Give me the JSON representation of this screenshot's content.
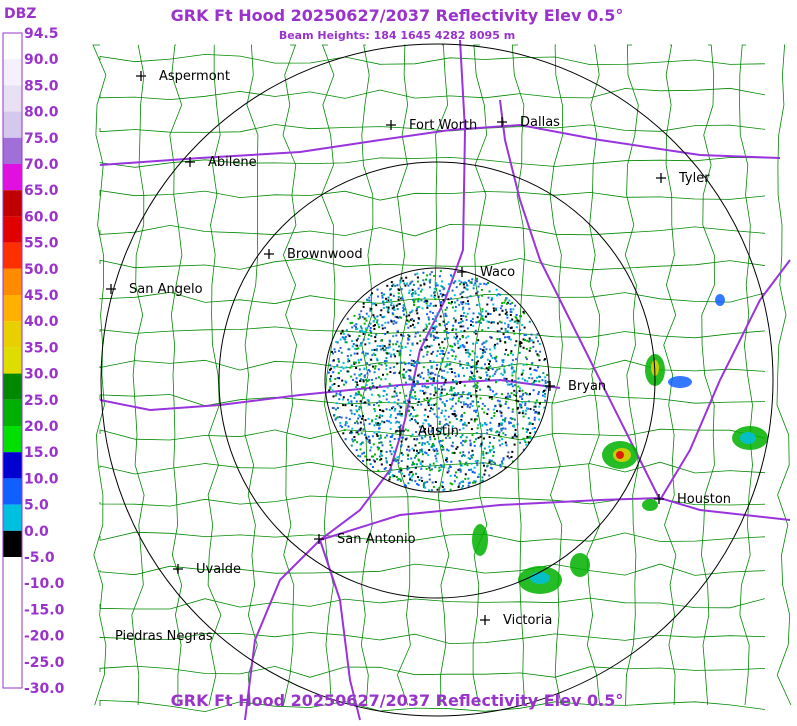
{
  "header": {
    "title": "GRK Ft Hood 20250627/2037 Reflectivity Elev 0.5°",
    "subtitle": "Beam Heights: 184 1645 4282 8095 m"
  },
  "legend": {
    "unit": "DBZ",
    "ticks": [
      "94.5",
      "90.0",
      "85.0",
      "80.0",
      "75.0",
      "70.0",
      "65.0",
      "60.0",
      "55.0",
      "50.0",
      "45.0",
      "40.0",
      "35.0",
      "30.0",
      "25.0",
      "20.0",
      "15.0",
      "10.0",
      "5.0",
      "0.0",
      "-5.0",
      "-10.0",
      "-15.0",
      "-20.0",
      "-25.0",
      "-30.0"
    ]
  },
  "cities": [
    "Aspermont",
    "Fort Worth",
    "Dallas",
    "Abilene",
    "Tyler",
    "Brownwood",
    "Waco",
    "San Angelo",
    "Bryan",
    "Austin",
    "Houston",
    "San Antonio",
    "Uvalde",
    "Victoria",
    "Piedras Negras"
  ],
  "footer": {
    "title": "GRK Ft Hood 20250627/2037 Reflectivity Elev 0.5°"
  }
}
